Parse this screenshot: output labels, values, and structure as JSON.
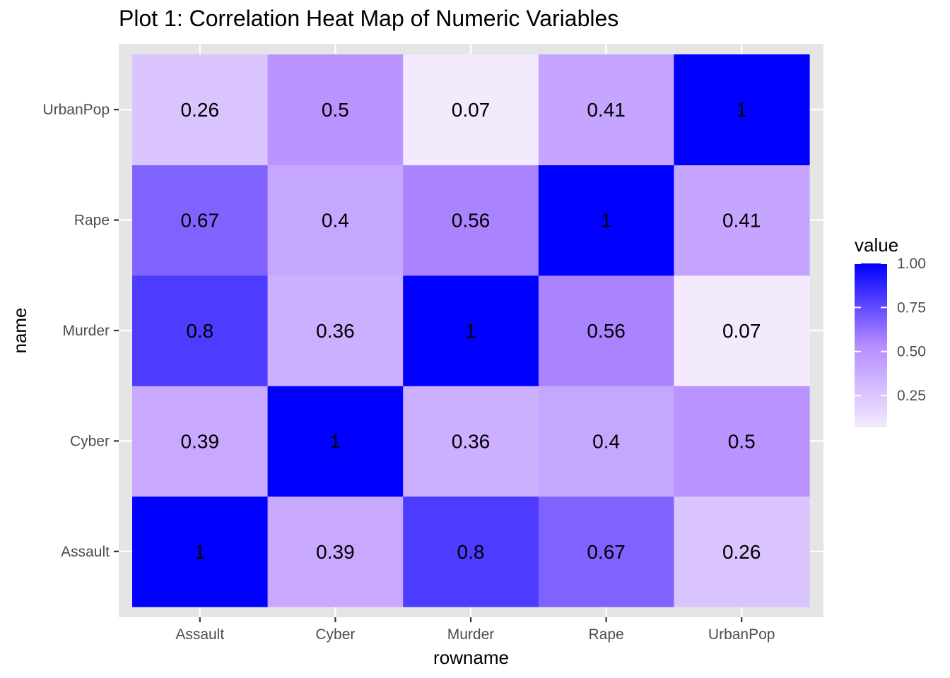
{
  "chart_data": {
    "type": "heatmap",
    "title": "Plot 1: Correlation Heat Map of Numeric Variables",
    "xlabel": "rowname",
    "ylabel": "name",
    "x_categories": [
      "Assault",
      "Cyber",
      "Murder",
      "Rape",
      "UrbanPop"
    ],
    "y_categories": [
      "Assault",
      "Cyber",
      "Murder",
      "Rape",
      "UrbanPop"
    ],
    "values": [
      [
        1,
        0.39,
        0.8,
        0.67,
        0.26
      ],
      [
        0.39,
        1,
        0.36,
        0.4,
        0.5
      ],
      [
        0.8,
        0.36,
        1,
        0.56,
        0.07
      ],
      [
        0.67,
        0.4,
        0.56,
        1,
        0.41
      ],
      [
        0.26,
        0.5,
        0.07,
        0.41,
        1
      ]
    ],
    "legend": {
      "title": "value",
      "placement": "right",
      "ticks": [
        0.25,
        0.5,
        0.75,
        1.0
      ],
      "tick_labels": [
        "0.25",
        "0.50",
        "0.75",
        "1.00"
      ],
      "range": [
        0.07,
        1.0
      ]
    },
    "colors": {
      "low": "#f3eafe",
      "mid": "#b48cff",
      "high": "#0000ff",
      "panel_background": "#e5e5e5",
      "grid": "#ffffff"
    },
    "grid": true
  }
}
